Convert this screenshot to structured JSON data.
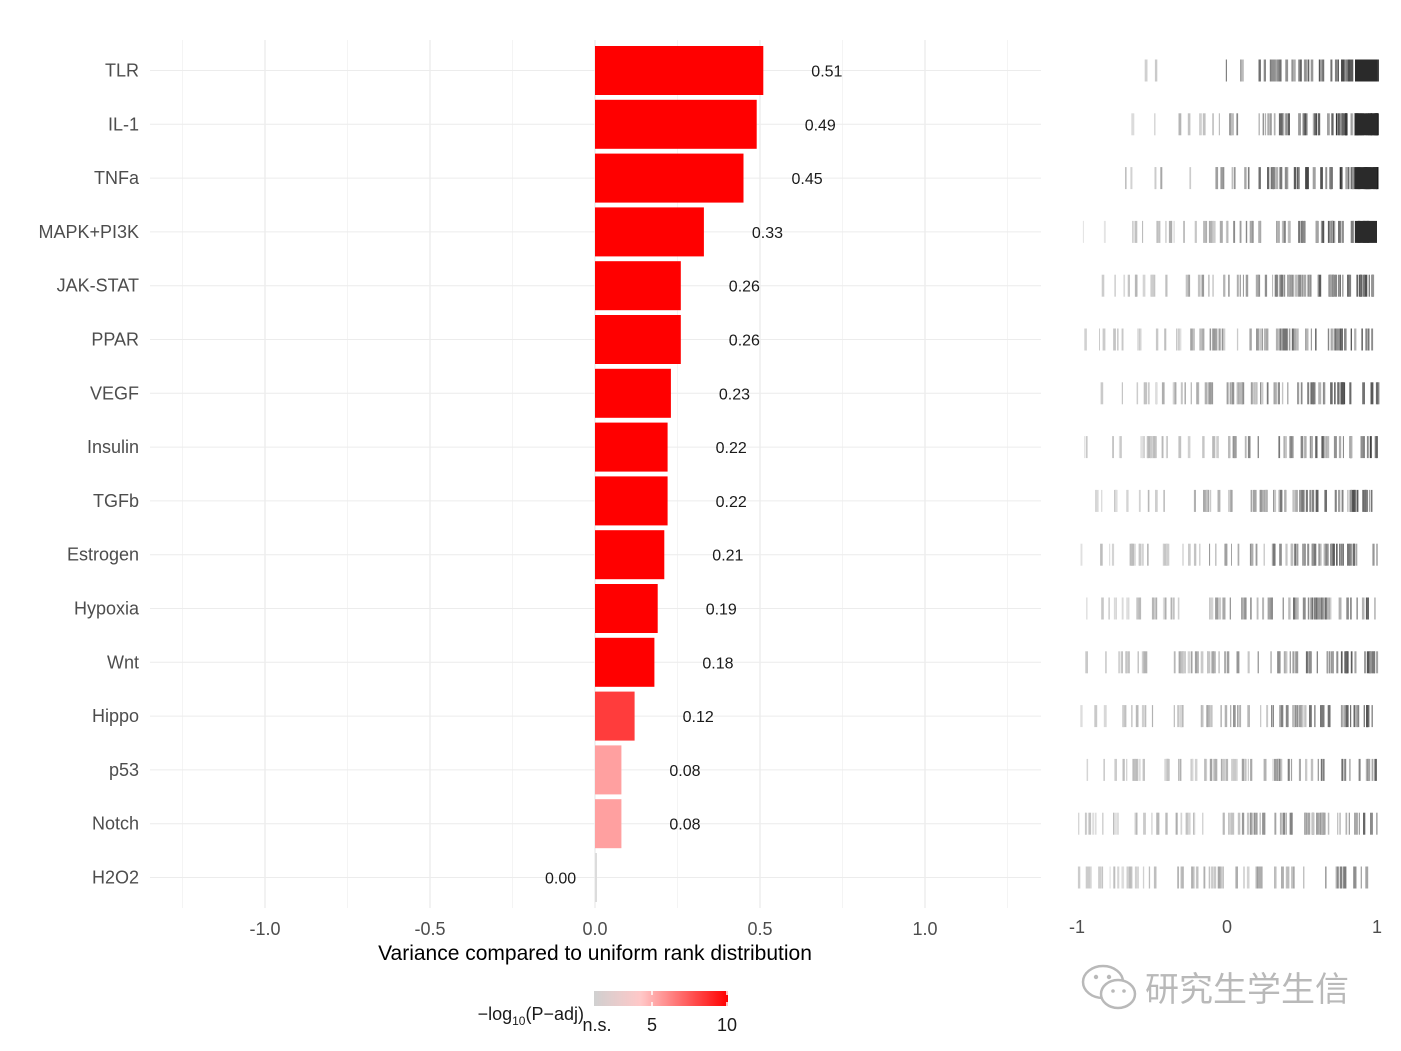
{
  "chart_data": {
    "type": "bar",
    "orientation": "horizontal",
    "categories": [
      "TLR",
      "IL-1",
      "TNFa",
      "MAPK+PI3K",
      "JAK-STAT",
      "PPAR",
      "VEGF",
      "Insulin",
      "TGFb",
      "Estrogen",
      "Hypoxia",
      "Wnt",
      "Hippo",
      "p53",
      "Notch",
      "H2O2"
    ],
    "values": [
      0.51,
      0.49,
      0.45,
      0.33,
      0.26,
      0.26,
      0.23,
      0.22,
      0.22,
      0.21,
      0.19,
      0.18,
      0.12,
      0.08,
      0.08,
      0.0
    ],
    "labels": [
      "0.51",
      "0.49",
      "0.45",
      "0.33",
      "0.26",
      "0.26",
      "0.23",
      "0.22",
      "0.22",
      "0.21",
      "0.19",
      "0.18",
      "0.12",
      "0.08",
      "0.08",
      "0.00"
    ],
    "neglog10_padj": [
      10,
      10,
      10,
      10,
      10,
      10,
      10,
      10,
      10,
      10,
      10,
      10,
      7,
      2,
      2,
      0
    ],
    "xlabel": "Variance compared to uniform rank distribution",
    "xlim": [
      -1.25,
      1.35
    ],
    "xticks": [
      -1.0,
      -0.5,
      0.0,
      0.5,
      1.0
    ],
    "xtick_labels": [
      "-1.0",
      "-0.5",
      "0.0",
      "0.5",
      "1.0"
    ],
    "grid": true,
    "legend": {
      "title_prefix": "−log",
      "title_sub": "10",
      "title_suffix": "(P−adj)",
      "range": [
        0,
        10
      ],
      "labels": [
        "n.s.",
        "5",
        "10"
      ],
      "colors": [
        "#d0d0d0",
        "#ffc8c8",
        "#ff0000"
      ],
      "placement": "bottom"
    },
    "rank_panel": {
      "xticks": [
        -1,
        0,
        1
      ],
      "xtick_labels": [
        "-1",
        "0",
        "1"
      ]
    },
    "colors": {
      "bar": "#ff0000",
      "ns_bar": "#dcdcdc",
      "ns_label": "#b3b3b3"
    }
  },
  "watermark": {
    "text": "研究生学生信",
    "icon": "wechat-icon"
  }
}
